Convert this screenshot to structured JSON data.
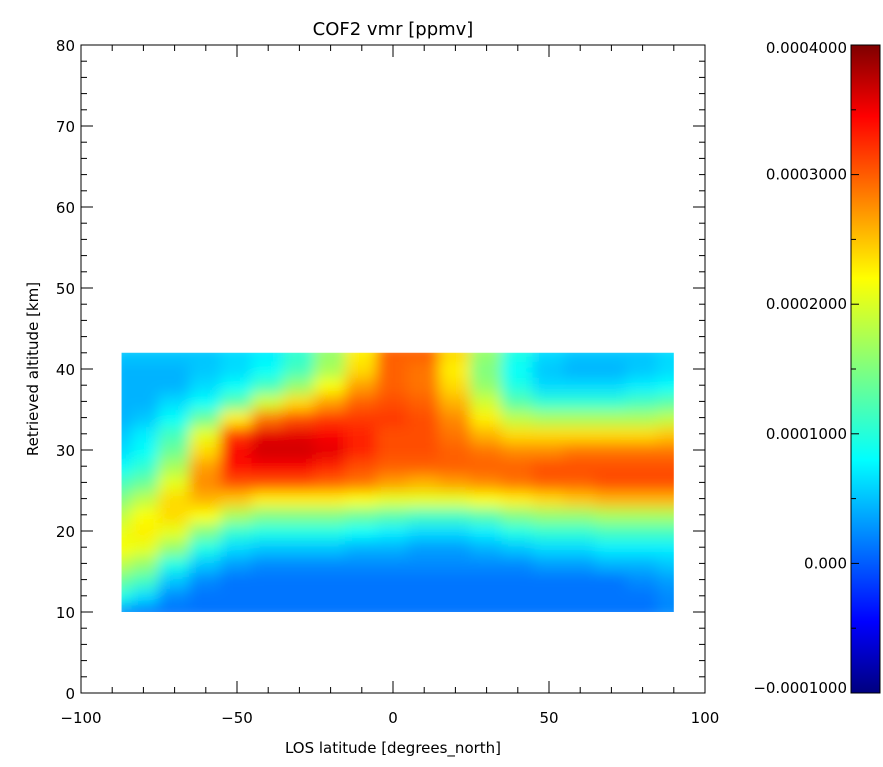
{
  "chart_data": {
    "type": "heatmap",
    "title": "COF2 vmr [ppmv]",
    "xlabel": "LOS latitude [degrees_north]",
    "ylabel": "Retrieved altitude [km]",
    "xlim": [
      -100,
      100
    ],
    "ylim": [
      0,
      80
    ],
    "x_ticks": [
      -100,
      -50,
      0,
      50,
      100
    ],
    "x_tick_labels": [
      "−100",
      "−50",
      "0",
      "50",
      "100"
    ],
    "y_ticks": [
      0,
      10,
      20,
      30,
      40,
      50,
      60,
      70,
      80
    ],
    "y_tick_labels": [
      "0",
      "10",
      "20",
      "30",
      "40",
      "50",
      "60",
      "70",
      "80"
    ],
    "data_extent": {
      "lat": [
        -87,
        90
      ],
      "alt": [
        10,
        42
      ]
    },
    "colorbar": {
      "colormap": "jet",
      "vmin": -0.0001,
      "vmax": 0.0004,
      "ticks": [
        0.0004,
        0.0003,
        0.0002,
        0.0001,
        0.0,
        -0.0001
      ],
      "tick_labels": [
        "0.0004000",
        "0.0003000",
        "0.0002000",
        "0.0001000",
        "0.000",
        "−0.0001000"
      ]
    },
    "grid": false,
    "lat": [
      -87,
      -80,
      -70,
      -60,
      -50,
      -40,
      -30,
      -20,
      -10,
      0,
      10,
      20,
      30,
      40,
      50,
      60,
      70,
      80,
      90
    ],
    "alt": [
      10,
      12,
      14,
      16,
      18,
      20,
      22,
      24,
      26,
      28,
      30,
      32,
      34,
      36,
      38,
      40,
      42
    ],
    "values": [
      [
        3e-05,
        2e-05,
        2e-05,
        2e-05,
        2e-05,
        2e-05,
        2e-05,
        2e-05,
        2e-05,
        2e-05,
        2e-05,
        2e-05,
        2e-05,
        2e-05,
        2e-05,
        2e-05,
        2e-05,
        2e-05,
        3e-05
      ],
      [
        0.0001,
        7e-05,
        3e-05,
        2e-05,
        2e-05,
        2e-05,
        2e-05,
        2e-05,
        2e-05,
        2e-05,
        2e-05,
        2e-05,
        2e-05,
        2e-05,
        2e-05,
        2e-05,
        2e-05,
        2e-05,
        3e-05
      ],
      [
        0.00014,
        0.00012,
        6e-05,
        3e-05,
        2e-05,
        2e-05,
        2e-05,
        2e-05,
        2e-05,
        2e-05,
        2e-05,
        2e-05,
        2e-05,
        2e-05,
        2e-05,
        2e-05,
        2e-05,
        3e-05,
        4e-05
      ],
      [
        0.00018,
        0.00016,
        0.0001,
        6e-05,
        4e-05,
        3e-05,
        3e-05,
        3e-05,
        3e-05,
        3e-05,
        3e-05,
        3e-05,
        3e-05,
        3e-05,
        4e-05,
        4e-05,
        5e-05,
        5e-05,
        6e-05
      ],
      [
        0.00021,
        0.0002,
        0.00016,
        0.0001,
        7e-05,
        6e-05,
        6e-05,
        6e-05,
        5e-05,
        5e-05,
        4e-05,
        4e-05,
        5e-05,
        6e-05,
        7e-05,
        7e-05,
        8e-05,
        8e-05,
        8e-05
      ],
      [
        0.0002,
        0.00022,
        0.0002,
        0.00015,
        0.00011,
        0.0001,
        0.0001,
        0.0001,
        9e-05,
        8e-05,
        7e-05,
        7e-05,
        8e-05,
        0.0001,
        0.00011,
        0.00011,
        0.00012,
        0.00012,
        0.00012
      ],
      [
        0.00018,
        0.00021,
        0.00023,
        0.00021,
        0.00017,
        0.00015,
        0.00015,
        0.00015,
        0.00014,
        0.00013,
        0.00012,
        0.00012,
        0.00013,
        0.00015,
        0.00016,
        0.00016,
        0.00017,
        0.00017,
        0.00017
      ],
      [
        0.00015,
        0.00018,
        0.00023,
        0.00025,
        0.00024,
        0.00022,
        0.00022,
        0.00022,
        0.00021,
        0.0002,
        0.0002,
        0.0002,
        0.00021,
        0.00022,
        0.00023,
        0.00024,
        0.00025,
        0.00025,
        0.00025
      ],
      [
        0.00012,
        0.00014,
        0.0002,
        0.00027,
        0.0003,
        0.0003,
        0.0003,
        0.00029,
        0.00028,
        0.00026,
        0.00025,
        0.00026,
        0.00027,
        0.00028,
        0.00029,
        0.00029,
        0.0003,
        0.0003,
        0.0003
      ],
      [
        9e-05,
        0.00011,
        0.00017,
        0.00026,
        0.00033,
        0.00034,
        0.00034,
        0.00032,
        0.0003,
        0.00029,
        0.00029,
        0.00029,
        0.00029,
        0.00029,
        0.0003,
        0.0003,
        0.0003,
        0.0003,
        0.0003
      ],
      [
        7e-05,
        9e-05,
        0.00014,
        0.00023,
        0.00034,
        0.00036,
        0.00036,
        0.00035,
        0.00032,
        0.0003,
        0.0003,
        0.00029,
        0.00028,
        0.00027,
        0.00027,
        0.00028,
        0.00028,
        0.00028,
        0.00028
      ],
      [
        6e-05,
        8e-05,
        0.00012,
        0.0002,
        0.00031,
        0.00035,
        0.00035,
        0.00034,
        0.00032,
        0.0003,
        0.0003,
        0.00028,
        0.00025,
        0.00023,
        0.00023,
        0.00023,
        0.00023,
        0.00023,
        0.00024
      ],
      [
        5e-05,
        6e-05,
        9e-05,
        0.00014,
        0.00022,
        0.00028,
        0.0003,
        0.00031,
        0.00031,
        0.00031,
        0.0003,
        0.00027,
        0.00022,
        0.00018,
        0.00017,
        0.00017,
        0.00017,
        0.00017,
        0.00018
      ],
      [
        5e-05,
        5e-05,
        7e-05,
        9e-05,
        0.00013,
        0.00019,
        0.00023,
        0.00026,
        0.00029,
        0.0003,
        0.00029,
        0.00025,
        0.00019,
        0.00013,
        0.00011,
        0.00011,
        0.00011,
        0.00012,
        0.00013
      ],
      [
        5e-05,
        5e-05,
        5e-05,
        7e-05,
        9e-05,
        0.00012,
        0.00016,
        0.00021,
        0.00026,
        0.00029,
        0.00028,
        0.00023,
        0.00016,
        0.0001,
        7e-05,
        7e-05,
        7e-05,
        8e-05,
        9e-05
      ],
      [
        5e-05,
        5e-05,
        5e-05,
        6e-05,
        7e-05,
        9e-05,
        0.00012,
        0.00017,
        0.00023,
        0.00029,
        0.00028,
        0.00022,
        0.00015,
        9e-05,
        6e-05,
        5e-05,
        5e-05,
        6e-05,
        7e-05
      ],
      [
        6e-05,
        6e-05,
        6e-05,
        6e-05,
        7e-05,
        8e-05,
        0.00011,
        0.00016,
        0.00022,
        0.00029,
        0.00029,
        0.00023,
        0.00016,
        0.0001,
        7e-05,
        6e-05,
        6e-05,
        6e-05,
        7e-05
      ]
    ]
  }
}
